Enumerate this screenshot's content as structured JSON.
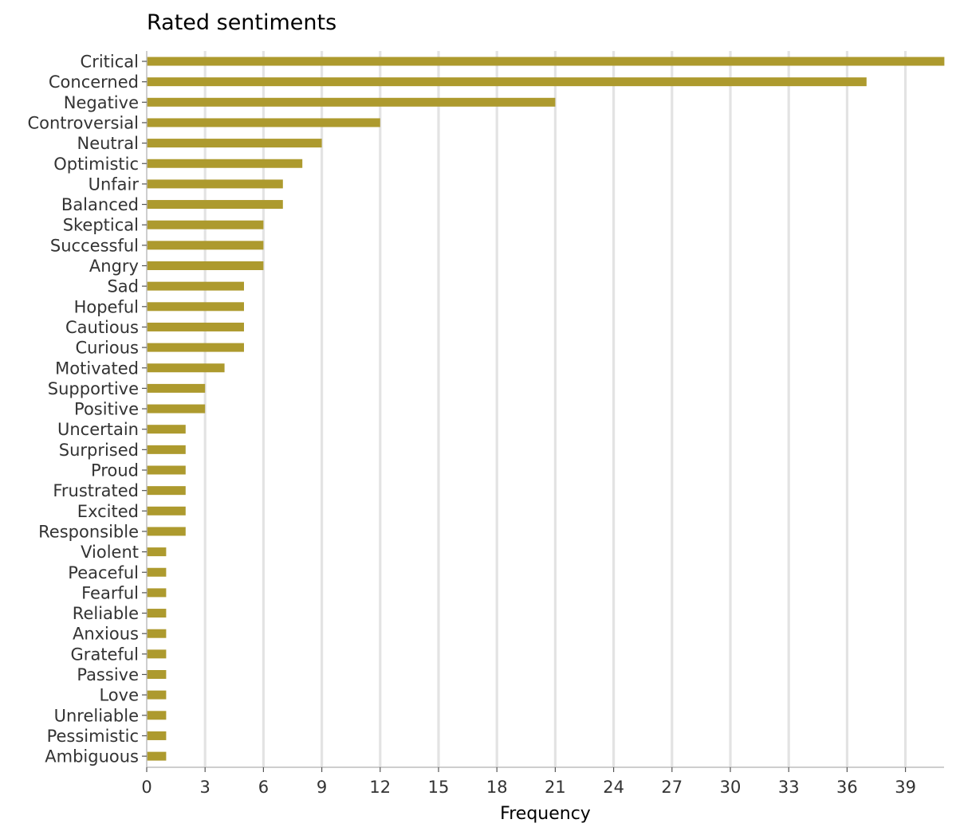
{
  "chart_data": {
    "type": "bar",
    "orientation": "horizontal",
    "title": "Rated sentiments",
    "xlabel": "Frequency",
    "ylabel": "",
    "xlim": [
      0,
      41
    ],
    "xticks": [
      0,
      3,
      6,
      9,
      12,
      15,
      18,
      21,
      24,
      27,
      30,
      33,
      36,
      39
    ],
    "grid": "vertical",
    "legend": "none",
    "bar_color": "#ad9a2e",
    "grid_color": "#e3e3e3",
    "categories": [
      "Critical",
      "Concerned",
      "Negative",
      "Controversial",
      "Neutral",
      "Optimistic",
      "Unfair",
      "Balanced",
      "Skeptical",
      "Successful",
      "Angry",
      "Sad",
      "Hopeful",
      "Cautious",
      "Curious",
      "Motivated",
      "Supportive",
      "Positive",
      "Uncertain",
      "Surprised",
      "Proud",
      "Frustrated",
      "Excited",
      "Responsible",
      "Violent",
      "Peaceful",
      "Fearful",
      "Reliable",
      "Anxious",
      "Grateful",
      "Passive",
      "Love",
      "Unreliable",
      "Pessimistic",
      "Ambiguous"
    ],
    "values": [
      41,
      37,
      21,
      12,
      9,
      8,
      7,
      7,
      6,
      6,
      6,
      5,
      5,
      5,
      5,
      4,
      3,
      3,
      2,
      2,
      2,
      2,
      2,
      2,
      1,
      1,
      1,
      1,
      1,
      1,
      1,
      1,
      1,
      1,
      1
    ]
  }
}
